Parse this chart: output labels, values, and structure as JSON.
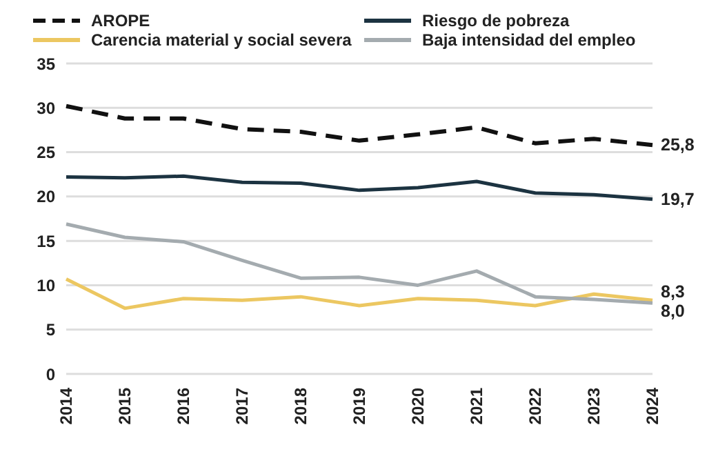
{
  "chart_data": {
    "type": "line",
    "categories": [
      "2014",
      "2015",
      "2016",
      "2017",
      "2018",
      "2019",
      "2020",
      "2021",
      "2022",
      "2023",
      "2024"
    ],
    "series": [
      {
        "name": "AROPE",
        "color": "#111111",
        "line_style": "dashed",
        "values": [
          30.2,
          28.8,
          28.8,
          27.6,
          27.3,
          26.3,
          27.0,
          27.8,
          26.0,
          26.5,
          25.8
        ],
        "value_labels": [
          null,
          null,
          null,
          null,
          null,
          null,
          null,
          null,
          null,
          null,
          "25,8"
        ]
      },
      {
        "name": "Riesgo de pobreza",
        "color": "#1c3341",
        "values": [
          22.2,
          22.1,
          22.3,
          21.6,
          21.5,
          20.7,
          21.0,
          21.7,
          20.4,
          20.2,
          19.7
        ],
        "value_labels": [
          null,
          null,
          null,
          null,
          null,
          null,
          null,
          null,
          null,
          null,
          "19,7"
        ]
      },
      {
        "name": "Carencia material y social severa",
        "color": "#ecc761",
        "values": [
          10.7,
          7.4,
          8.5,
          8.3,
          8.7,
          7.7,
          8.5,
          8.3,
          7.7,
          9.0,
          8.3
        ],
        "value_labels": [
          null,
          null,
          null,
          null,
          null,
          null,
          null,
          null,
          null,
          null,
          "8,3"
        ]
      },
      {
        "name": "Baja intensidad del empleo",
        "color": "#a4abaf",
        "values": [
          16.9,
          15.4,
          14.9,
          12.8,
          10.8,
          10.9,
          10.0,
          11.6,
          8.7,
          8.4,
          8.0
        ],
        "value_labels": [
          null,
          null,
          null,
          null,
          null,
          null,
          null,
          null,
          null,
          null,
          "8,0"
        ]
      }
    ],
    "ylim": [
      0,
      35
    ],
    "yticks": [
      0,
      5,
      10,
      15,
      20,
      25,
      30,
      35
    ],
    "grid": "y",
    "legend": "top",
    "marker": "none",
    "line_style": "solid"
  }
}
